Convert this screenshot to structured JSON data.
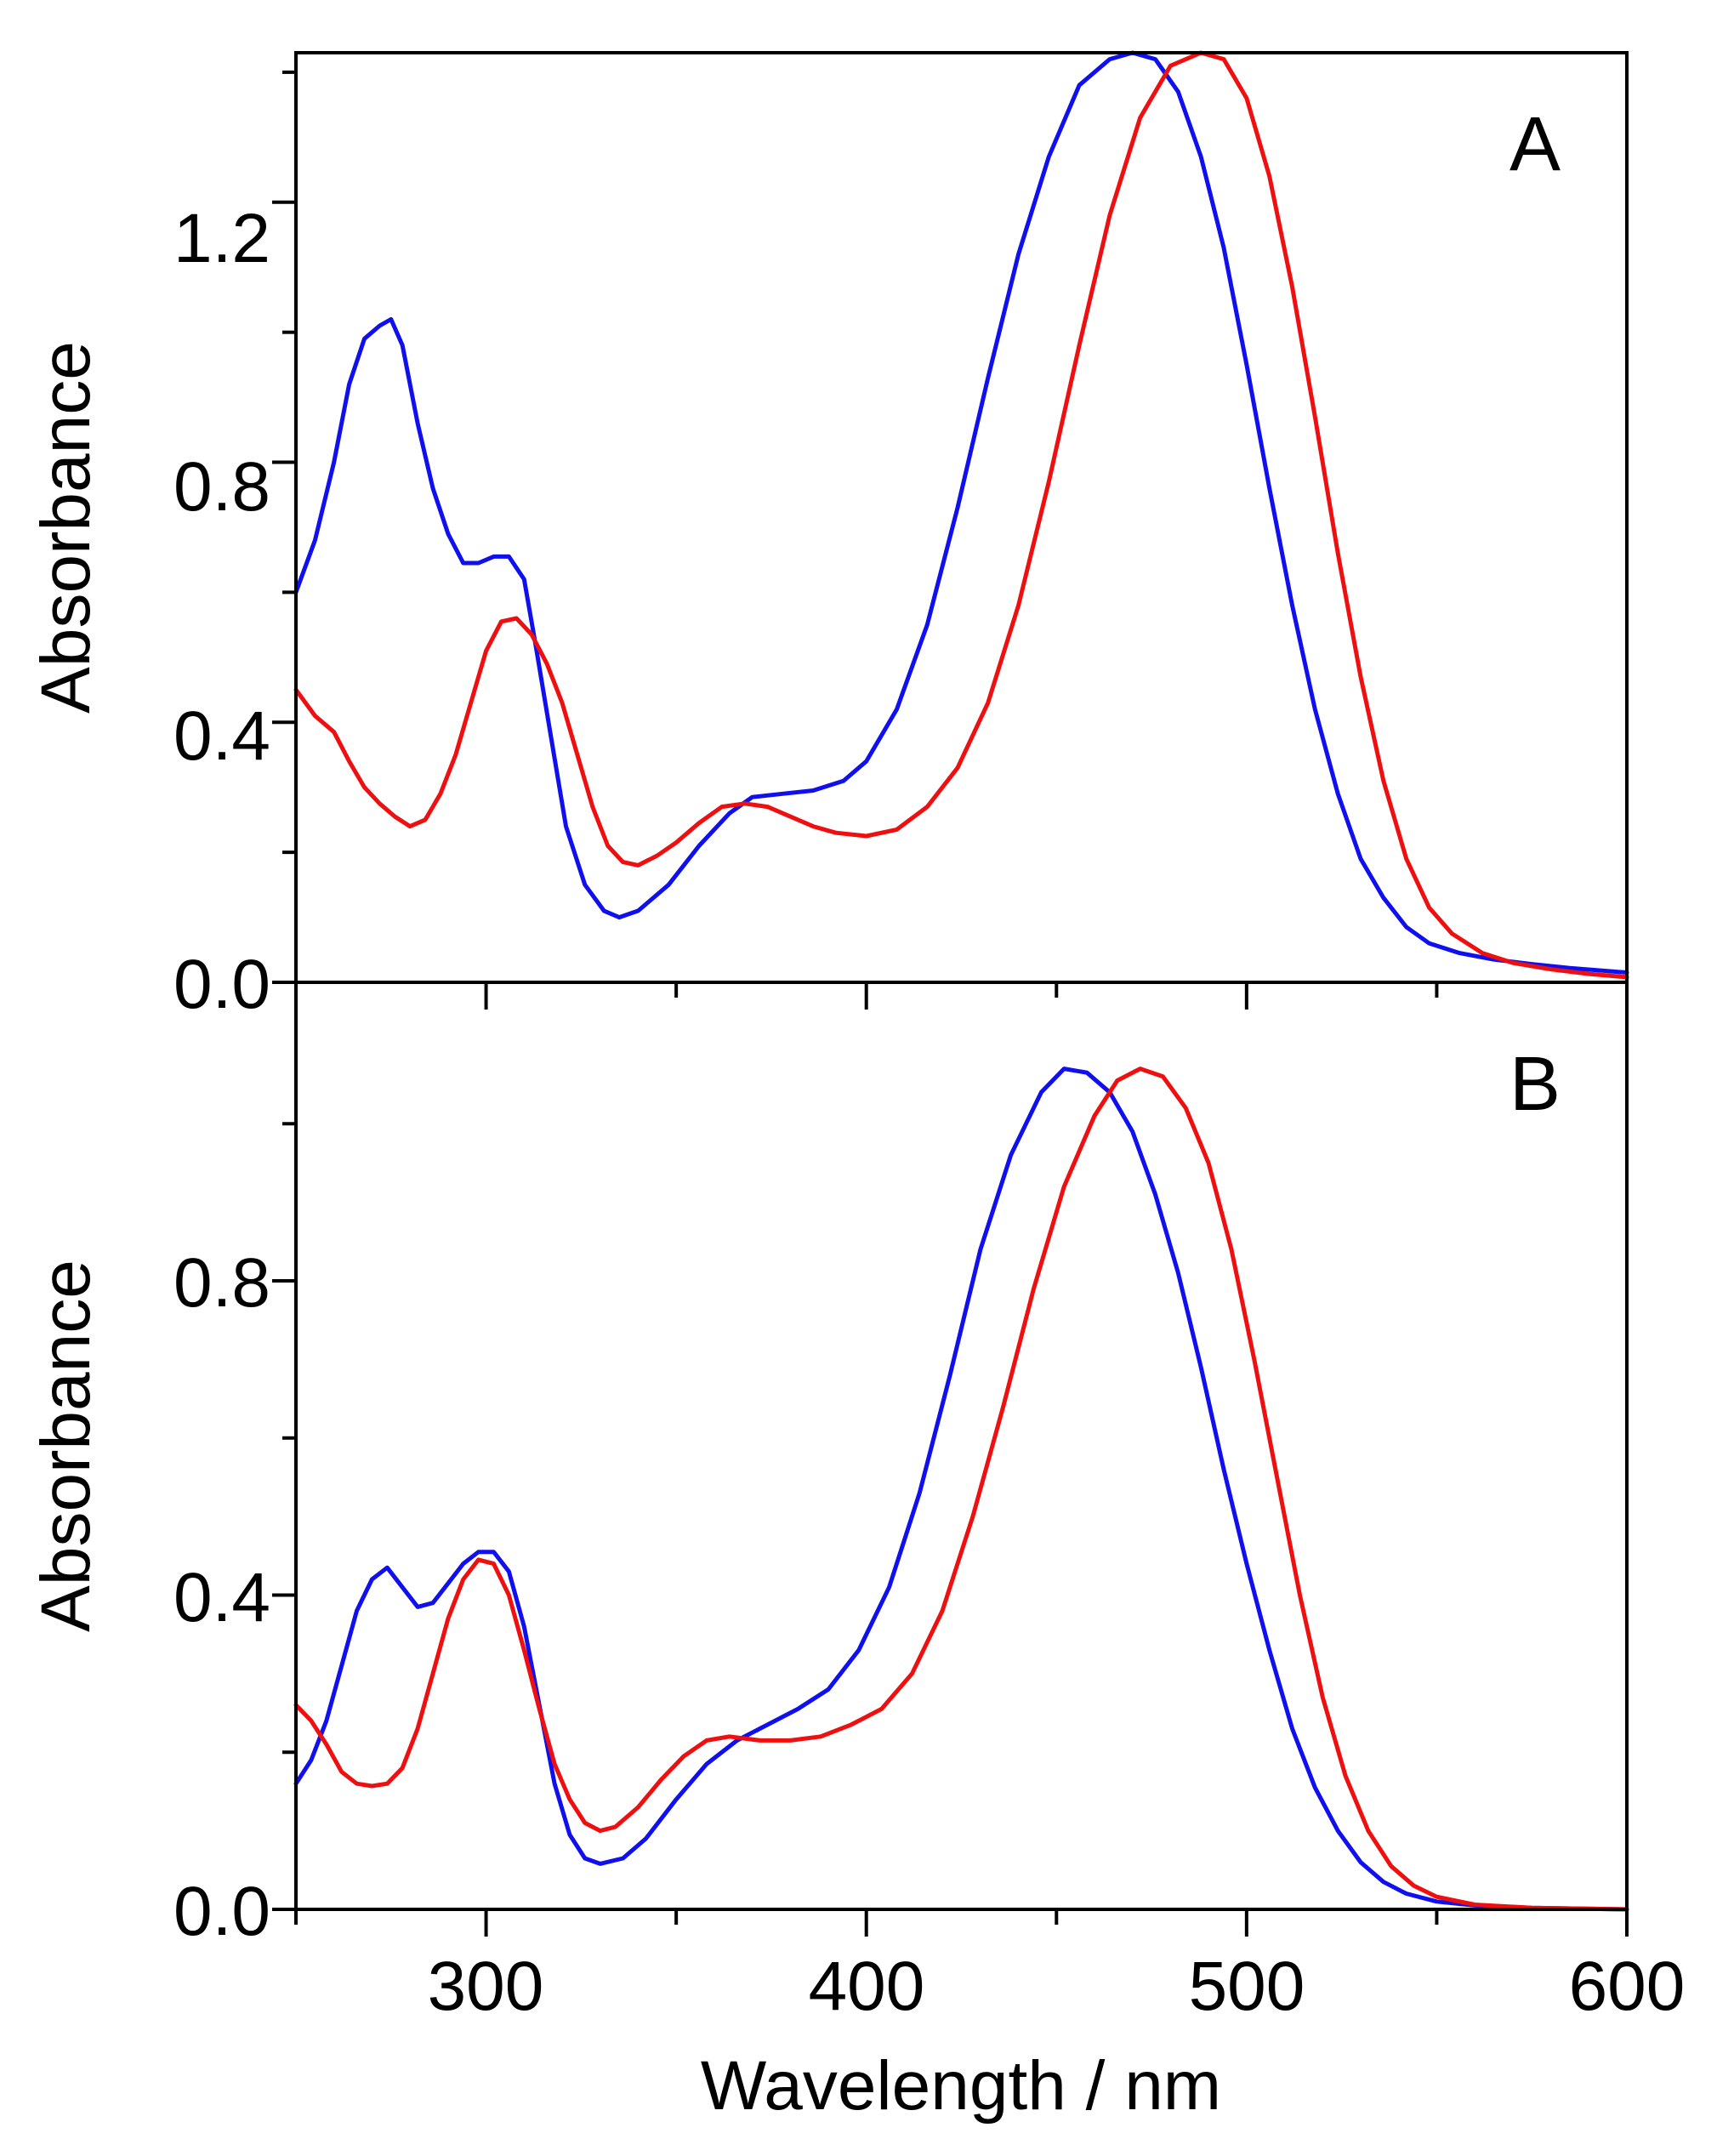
{
  "chart_data": [
    {
      "type": "line",
      "panel": "A",
      "panel_label": "A",
      "xlabel": "",
      "ylabel": "Absorbance",
      "xlim": [
        250,
        600
      ],
      "ylim": [
        0,
        1.43
      ],
      "x_ticks": [
        300,
        400,
        500,
        600
      ],
      "y_ticks": [
        0.0,
        0.4,
        0.8,
        1.2
      ],
      "y_tick_labels": [
        "0.0",
        "0.4",
        "0.8",
        "1.2"
      ],
      "grid": false,
      "series": [
        {
          "name": "blue",
          "color": "#1010ee",
          "points": [
            [
              250,
              0.6
            ],
            [
              255,
              0.68
            ],
            [
              260,
              0.8
            ],
            [
              264,
              0.92
            ],
            [
              268,
              0.99
            ],
            [
              272,
              1.01
            ],
            [
              275,
              1.02
            ],
            [
              278,
              0.98
            ],
            [
              282,
              0.86
            ],
            [
              286,
              0.76
            ],
            [
              290,
              0.69
            ],
            [
              294,
              0.645
            ],
            [
              298,
              0.645
            ],
            [
              302,
              0.655
            ],
            [
              306,
              0.655
            ],
            [
              310,
              0.62
            ],
            [
              313,
              0.52
            ],
            [
              317,
              0.38
            ],
            [
              321,
              0.24
            ],
            [
              326,
              0.15
            ],
            [
              331,
              0.11
            ],
            [
              335,
              0.1
            ],
            [
              340,
              0.11
            ],
            [
              348,
              0.15
            ],
            [
              356,
              0.21
            ],
            [
              364,
              0.26
            ],
            [
              370,
              0.285
            ],
            [
              378,
              0.29
            ],
            [
              386,
              0.295
            ],
            [
              394,
              0.31
            ],
            [
              400,
              0.34
            ],
            [
              408,
              0.42
            ],
            [
              416,
              0.55
            ],
            [
              424,
              0.73
            ],
            [
              432,
              0.93
            ],
            [
              440,
              1.12
            ],
            [
              448,
              1.27
            ],
            [
              456,
              1.38
            ],
            [
              464,
              1.42
            ],
            [
              470,
              1.43
            ],
            [
              476,
              1.42
            ],
            [
              482,
              1.37
            ],
            [
              488,
              1.27
            ],
            [
              494,
              1.13
            ],
            [
              500,
              0.95
            ],
            [
              506,
              0.76
            ],
            [
              512,
              0.58
            ],
            [
              518,
              0.42
            ],
            [
              524,
              0.29
            ],
            [
              530,
              0.19
            ],
            [
              536,
              0.13
            ],
            [
              542,
              0.085
            ],
            [
              548,
              0.06
            ],
            [
              556,
              0.045
            ],
            [
              565,
              0.035
            ],
            [
              575,
              0.028
            ],
            [
              585,
              0.022
            ],
            [
              600,
              0.015
            ]
          ]
        },
        {
          "name": "red",
          "color": "#ee1010",
          "points": [
            [
              250,
              0.45
            ],
            [
              255,
              0.41
            ],
            [
              260,
              0.385
            ],
            [
              264,
              0.34
            ],
            [
              268,
              0.3
            ],
            [
              272,
              0.275
            ],
            [
              276,
              0.255
            ],
            [
              280,
              0.24
            ],
            [
              284,
              0.25
            ],
            [
              288,
              0.29
            ],
            [
              292,
              0.35
            ],
            [
              296,
              0.43
            ],
            [
              300,
              0.51
            ],
            [
              304,
              0.555
            ],
            [
              308,
              0.56
            ],
            [
              312,
              0.535
            ],
            [
              316,
              0.49
            ],
            [
              320,
              0.43
            ],
            [
              324,
              0.35
            ],
            [
              328,
              0.27
            ],
            [
              332,
              0.21
            ],
            [
              336,
              0.185
            ],
            [
              340,
              0.18
            ],
            [
              345,
              0.195
            ],
            [
              350,
              0.215
            ],
            [
              356,
              0.245
            ],
            [
              362,
              0.27
            ],
            [
              368,
              0.275
            ],
            [
              374,
              0.27
            ],
            [
              380,
              0.255
            ],
            [
              386,
              0.24
            ],
            [
              392,
              0.23
            ],
            [
              400,
              0.225
            ],
            [
              408,
              0.235
            ],
            [
              416,
              0.27
            ],
            [
              424,
              0.33
            ],
            [
              432,
              0.43
            ],
            [
              440,
              0.58
            ],
            [
              448,
              0.77
            ],
            [
              456,
              0.98
            ],
            [
              464,
              1.18
            ],
            [
              472,
              1.33
            ],
            [
              480,
              1.41
            ],
            [
              488,
              1.43
            ],
            [
              494,
              1.42
            ],
            [
              500,
              1.36
            ],
            [
              506,
              1.24
            ],
            [
              512,
              1.07
            ],
            [
              518,
              0.87
            ],
            [
              524,
              0.66
            ],
            [
              530,
              0.47
            ],
            [
              536,
              0.31
            ],
            [
              542,
              0.19
            ],
            [
              548,
              0.115
            ],
            [
              554,
              0.075
            ],
            [
              562,
              0.045
            ],
            [
              570,
              0.03
            ],
            [
              580,
              0.02
            ],
            [
              590,
              0.013
            ],
            [
              600,
              0.008
            ]
          ]
        }
      ]
    },
    {
      "type": "line",
      "panel": "B",
      "panel_label": "B",
      "xlabel": "Wavelength / nm",
      "ylabel": "Absorbance",
      "xlim": [
        250,
        600
      ],
      "ylim": [
        0,
        1.18
      ],
      "x_ticks": [
        300,
        400,
        500,
        600
      ],
      "x_tick_labels": [
        "300",
        "400",
        "500",
        "600"
      ],
      "y_ticks": [
        0.0,
        0.4,
        0.8
      ],
      "y_tick_labels": [
        "0.0",
        "0.4",
        "0.8"
      ],
      "grid": false,
      "series": [
        {
          "name": "blue",
          "color": "#1010ee",
          "points": [
            [
              250,
              0.16
            ],
            [
              254,
              0.19
            ],
            [
              258,
              0.24
            ],
            [
              262,
              0.31
            ],
            [
              266,
              0.38
            ],
            [
              270,
              0.42
            ],
            [
              274,
              0.435
            ],
            [
              278,
              0.41
            ],
            [
              282,
              0.385
            ],
            [
              286,
              0.39
            ],
            [
              290,
              0.415
            ],
            [
              294,
              0.44
            ],
            [
              298,
              0.455
            ],
            [
              302,
              0.455
            ],
            [
              306,
              0.43
            ],
            [
              310,
              0.36
            ],
            [
              314,
              0.26
            ],
            [
              318,
              0.16
            ],
            [
              322,
              0.095
            ],
            [
              326,
              0.065
            ],
            [
              330,
              0.058
            ],
            [
              336,
              0.065
            ],
            [
              342,
              0.09
            ],
            [
              350,
              0.14
            ],
            [
              358,
              0.185
            ],
            [
              366,
              0.215
            ],
            [
              374,
              0.235
            ],
            [
              382,
              0.255
            ],
            [
              390,
              0.28
            ],
            [
              398,
              0.33
            ],
            [
              406,
              0.41
            ],
            [
              414,
              0.53
            ],
            [
              422,
              0.68
            ],
            [
              430,
              0.84
            ],
            [
              438,
              0.96
            ],
            [
              446,
              1.04
            ],
            [
              452,
              1.07
            ],
            [
              458,
              1.065
            ],
            [
              464,
              1.04
            ],
            [
              470,
              0.99
            ],
            [
              476,
              0.91
            ],
            [
              482,
              0.81
            ],
            [
              488,
              0.69
            ],
            [
              494,
              0.56
            ],
            [
              500,
              0.44
            ],
            [
              506,
              0.33
            ],
            [
              512,
              0.23
            ],
            [
              518,
              0.155
            ],
            [
              524,
              0.1
            ],
            [
              530,
              0.06
            ],
            [
              536,
              0.035
            ],
            [
              542,
              0.02
            ],
            [
              550,
              0.01
            ],
            [
              560,
              0.005
            ],
            [
              575,
              0.002
            ],
            [
              600,
              0.0
            ]
          ]
        },
        {
          "name": "red",
          "color": "#ee1010",
          "points": [
            [
              250,
              0.26
            ],
            [
              254,
              0.24
            ],
            [
              258,
              0.21
            ],
            [
              262,
              0.175
            ],
            [
              266,
              0.16
            ],
            [
              270,
              0.157
            ],
            [
              274,
              0.16
            ],
            [
              278,
              0.18
            ],
            [
              282,
              0.23
            ],
            [
              286,
              0.3
            ],
            [
              290,
              0.37
            ],
            [
              294,
              0.42
            ],
            [
              298,
              0.445
            ],
            [
              302,
              0.44
            ],
            [
              306,
              0.4
            ],
            [
              310,
              0.33
            ],
            [
              314,
              0.255
            ],
            [
              318,
              0.185
            ],
            [
              322,
              0.14
            ],
            [
              326,
              0.11
            ],
            [
              330,
              0.1
            ],
            [
              334,
              0.105
            ],
            [
              340,
              0.13
            ],
            [
              346,
              0.165
            ],
            [
              352,
              0.195
            ],
            [
              358,
              0.215
            ],
            [
              364,
              0.22
            ],
            [
              372,
              0.215
            ],
            [
              380,
              0.215
            ],
            [
              388,
              0.22
            ],
            [
              396,
              0.235
            ],
            [
              404,
              0.255
            ],
            [
              412,
              0.3
            ],
            [
              420,
              0.38
            ],
            [
              428,
              0.5
            ],
            [
              436,
              0.64
            ],
            [
              444,
              0.79
            ],
            [
              452,
              0.92
            ],
            [
              460,
              1.01
            ],
            [
              466,
              1.055
            ],
            [
              472,
              1.07
            ],
            [
              478,
              1.06
            ],
            [
              484,
              1.02
            ],
            [
              490,
              0.95
            ],
            [
              496,
              0.84
            ],
            [
              502,
              0.7
            ],
            [
              508,
              0.55
            ],
            [
              514,
              0.4
            ],
            [
              520,
              0.27
            ],
            [
              526,
              0.17
            ],
            [
              532,
              0.1
            ],
            [
              538,
              0.055
            ],
            [
              544,
              0.03
            ],
            [
              550,
              0.016
            ],
            [
              560,
              0.006
            ],
            [
              575,
              0.002
            ],
            [
              600,
              0.0
            ]
          ]
        }
      ]
    }
  ]
}
